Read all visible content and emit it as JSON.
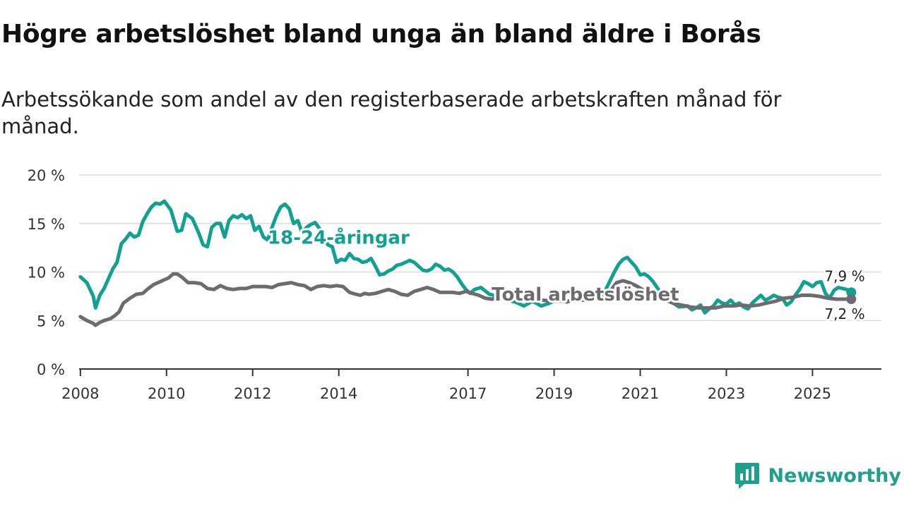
{
  "title": "Högre arbetslöshet bland unga än bland äldre i Borås",
  "subtitle": "Arbetssökande som andel av den registerbaserade arbetskraften månad för månad.",
  "brand": {
    "name": "Newsworthy"
  },
  "colors": {
    "youth": "#11a191",
    "total": "#6e6a70",
    "grid": "#dcdcdc",
    "axis": "#333333"
  },
  "chart_data": {
    "type": "line",
    "title": "Högre arbetslöshet bland unga än bland äldre i Borås",
    "ylabel": "",
    "xlabel": "",
    "ylim": [
      0,
      20
    ],
    "xlim": [
      2007.97,
      2026.6
    ],
    "y_ticks": [
      {
        "value": 0,
        "label": "0 %"
      },
      {
        "value": 5,
        "label": "5 %"
      },
      {
        "value": 10,
        "label": "10 %"
      },
      {
        "value": 15,
        "label": "15 %"
      },
      {
        "value": 20,
        "label": "20 %"
      }
    ],
    "x_ticks": [
      {
        "value": 2008,
        "label": "2008"
      },
      {
        "value": 2010,
        "label": "2010"
      },
      {
        "value": 2012,
        "label": "2012"
      },
      {
        "value": 2014,
        "label": "2014"
      },
      {
        "value": 2017,
        "label": "2017"
      },
      {
        "value": 2019,
        "label": "2019"
      },
      {
        "value": 2021,
        "label": "2021"
      },
      {
        "value": 2023,
        "label": "2023"
      },
      {
        "value": 2025,
        "label": "2025"
      }
    ],
    "series": [
      {
        "key": "youth",
        "name": "18-24-åringar",
        "end_label": "7,9 %",
        "x": [
          2008.0,
          2008.15,
          2008.3,
          2008.35,
          2008.45,
          2008.55,
          2008.65,
          2008.75,
          2008.85,
          2008.95,
          2009.05,
          2009.15,
          2009.25,
          2009.35,
          2009.45,
          2009.55,
          2009.65,
          2009.75,
          2009.85,
          2009.95,
          2010.1,
          2010.25,
          2010.35,
          2010.45,
          2010.6,
          2010.75,
          2010.85,
          2010.95,
          2011.05,
          2011.15,
          2011.25,
          2011.35,
          2011.45,
          2011.55,
          2011.65,
          2011.75,
          2011.85,
          2011.95,
          2012.05,
          2012.15,
          2012.25,
          2012.35,
          2012.45,
          2012.55,
          2012.65,
          2012.75,
          2012.85,
          2012.95,
          2013.05,
          2013.15,
          2013.25,
          2013.35,
          2013.45,
          2013.55,
          2013.65,
          2013.75,
          2013.85,
          2013.95,
          2014.05,
          2014.15,
          2014.25,
          2014.35,
          2014.45,
          2014.55,
          2014.65,
          2014.75,
          2014.85,
          2014.95,
          2015.05,
          2015.15,
          2015.25,
          2015.35,
          2015.45,
          2015.55,
          2015.65,
          2015.75,
          2015.85,
          2015.95,
          2016.05,
          2016.15,
          2016.25,
          2016.35,
          2016.45,
          2016.55,
          2016.65,
          2016.75,
          2016.85,
          2016.95,
          2017.05,
          2017.15,
          2017.3,
          2017.5,
          2017.7,
          2017.9,
          2018.1,
          2018.3,
          2018.5,
          2018.7,
          2018.9,
          2019.1,
          2019.3,
          2019.5,
          2019.7,
          2019.9,
          2020.1,
          2020.2,
          2020.3,
          2020.4,
          2020.5,
          2020.6,
          2020.7,
          2020.8,
          2020.9,
          2021.0,
          2021.1,
          2021.2,
          2021.3,
          2021.5,
          2021.7,
          2021.9,
          2022.1,
          2022.2,
          2022.3,
          2022.4,
          2022.5,
          2022.6,
          2022.7,
          2022.8,
          2022.9,
          2023.0,
          2023.1,
          2023.2,
          2023.3,
          2023.4,
          2023.5,
          2023.6,
          2023.7,
          2023.8,
          2023.9,
          2024.0,
          2024.1,
          2024.2,
          2024.3,
          2024.4,
          2024.5,
          2024.6,
          2024.7,
          2024.8,
          2024.9,
          2025.0,
          2025.1,
          2025.2,
          2025.3,
          2025.4,
          2025.5,
          2025.6,
          2025.7,
          2025.8,
          2025.9
        ],
        "y": [
          9.5,
          8.9,
          7.5,
          6.3,
          7.6,
          8.3,
          9.3,
          10.3,
          11.0,
          12.9,
          13.4,
          14.0,
          13.6,
          13.8,
          15.2,
          16.0,
          16.7,
          17.1,
          17.0,
          17.3,
          16.4,
          14.2,
          14.3,
          16.0,
          15.5,
          14.0,
          12.8,
          12.6,
          14.6,
          15.0,
          15.0,
          13.6,
          15.3,
          15.8,
          15.6,
          15.9,
          15.5,
          15.8,
          14.3,
          14.7,
          13.6,
          13.3,
          14.6,
          15.8,
          16.7,
          17.0,
          16.5,
          15.0,
          15.3,
          14.0,
          14.6,
          14.9,
          15.1,
          14.5,
          13.6,
          12.8,
          12.6,
          11.0,
          11.3,
          11.2,
          11.9,
          11.4,
          11.3,
          11.0,
          11.1,
          11.4,
          10.6,
          9.7,
          9.8,
          10.1,
          10.3,
          10.7,
          10.8,
          11.0,
          11.2,
          11.0,
          10.6,
          10.2,
          10.1,
          10.3,
          10.8,
          10.6,
          10.2,
          10.3,
          10.0,
          9.5,
          8.8,
          8.2,
          7.8,
          8.2,
          8.4,
          7.7,
          7.5,
          7.1,
          6.9,
          6.5,
          7.0,
          6.5,
          6.8,
          7.3,
          6.9,
          7.3,
          7.4,
          7.1,
          7.8,
          8.2,
          9.1,
          10.0,
          10.8,
          11.3,
          11.5,
          11.0,
          10.5,
          9.7,
          9.8,
          9.5,
          9.0,
          7.7,
          7.0,
          6.4,
          6.5,
          6.1,
          6.3,
          6.6,
          5.8,
          6.2,
          6.5,
          7.1,
          6.8,
          6.7,
          7.1,
          6.6,
          6.8,
          6.4,
          6.2,
          6.8,
          7.2,
          7.6,
          7.1,
          7.3,
          7.6,
          7.4,
          7.3,
          6.6,
          6.9,
          7.6,
          8.2,
          9.0,
          8.8,
          8.5,
          8.9,
          9.0,
          7.8,
          7.3,
          8.1,
          8.4,
          8.3,
          8.2,
          7.9
        ]
      },
      {
        "key": "total",
        "name": "Total arbetslöshet",
        "end_label": "7,2 %",
        "x": [
          2008.0,
          2008.15,
          2008.3,
          2008.35,
          2008.45,
          2008.55,
          2008.7,
          2008.8,
          2008.9,
          2009.0,
          2009.15,
          2009.3,
          2009.45,
          2009.55,
          2009.7,
          2009.85,
          2009.95,
          2010.05,
          2010.15,
          2010.25,
          2010.35,
          2010.5,
          2010.65,
          2010.8,
          2010.95,
          2011.1,
          2011.25,
          2011.4,
          2011.55,
          2011.7,
          2011.85,
          2012.0,
          2012.15,
          2012.3,
          2012.45,
          2012.6,
          2012.75,
          2012.9,
          2013.05,
          2013.2,
          2013.35,
          2013.5,
          2013.65,
          2013.8,
          2013.95,
          2014.1,
          2014.25,
          2014.4,
          2014.5,
          2014.6,
          2014.7,
          2014.85,
          2015.0,
          2015.15,
          2015.3,
          2015.45,
          2015.6,
          2015.75,
          2015.9,
          2016.05,
          2016.2,
          2016.35,
          2016.5,
          2016.65,
          2016.8,
          2016.95,
          2017.1,
          2017.25,
          2017.4,
          2017.55,
          2017.8,
          2018.1,
          2018.4,
          2018.7,
          2019.0,
          2019.3,
          2019.6,
          2019.9,
          2020.1,
          2020.3,
          2020.45,
          2020.6,
          2020.75,
          2020.9,
          2021.05,
          2021.2,
          2021.35,
          2021.55,
          2021.75,
          2021.95,
          2022.15,
          2022.35,
          2022.55,
          2022.75,
          2022.95,
          2023.15,
          2023.35,
          2023.55,
          2023.75,
          2023.95,
          2024.15,
          2024.35,
          2024.55,
          2024.75,
          2024.95,
          2025.15,
          2025.35,
          2025.55,
          2025.75,
          2025.9
        ],
        "y": [
          5.4,
          5.0,
          4.7,
          4.5,
          4.8,
          5.0,
          5.2,
          5.5,
          5.9,
          6.8,
          7.3,
          7.7,
          7.8,
          8.2,
          8.7,
          9.0,
          9.2,
          9.4,
          9.8,
          9.8,
          9.5,
          8.9,
          8.9,
          8.8,
          8.3,
          8.2,
          8.6,
          8.3,
          8.2,
          8.3,
          8.3,
          8.5,
          8.5,
          8.5,
          8.4,
          8.7,
          8.8,
          8.9,
          8.7,
          8.6,
          8.2,
          8.5,
          8.6,
          8.5,
          8.6,
          8.5,
          7.9,
          7.7,
          7.6,
          7.8,
          7.7,
          7.8,
          8.0,
          8.2,
          8.0,
          7.7,
          7.6,
          8.0,
          8.2,
          8.4,
          8.2,
          7.9,
          7.9,
          7.9,
          7.8,
          8.0,
          7.8,
          7.6,
          7.3,
          7.2,
          7.4,
          7.3,
          7.2,
          7.1,
          7.0,
          7.0,
          7.1,
          7.1,
          7.4,
          8.0,
          8.9,
          9.1,
          8.9,
          8.6,
          8.2,
          7.7,
          7.5,
          7.2,
          6.8,
          6.6,
          6.4,
          6.3,
          6.3,
          6.3,
          6.5,
          6.5,
          6.6,
          6.5,
          6.6,
          6.8,
          7.0,
          7.3,
          7.4,
          7.6,
          7.6,
          7.5,
          7.3,
          7.2,
          7.2,
          7.2
        ]
      }
    ]
  }
}
